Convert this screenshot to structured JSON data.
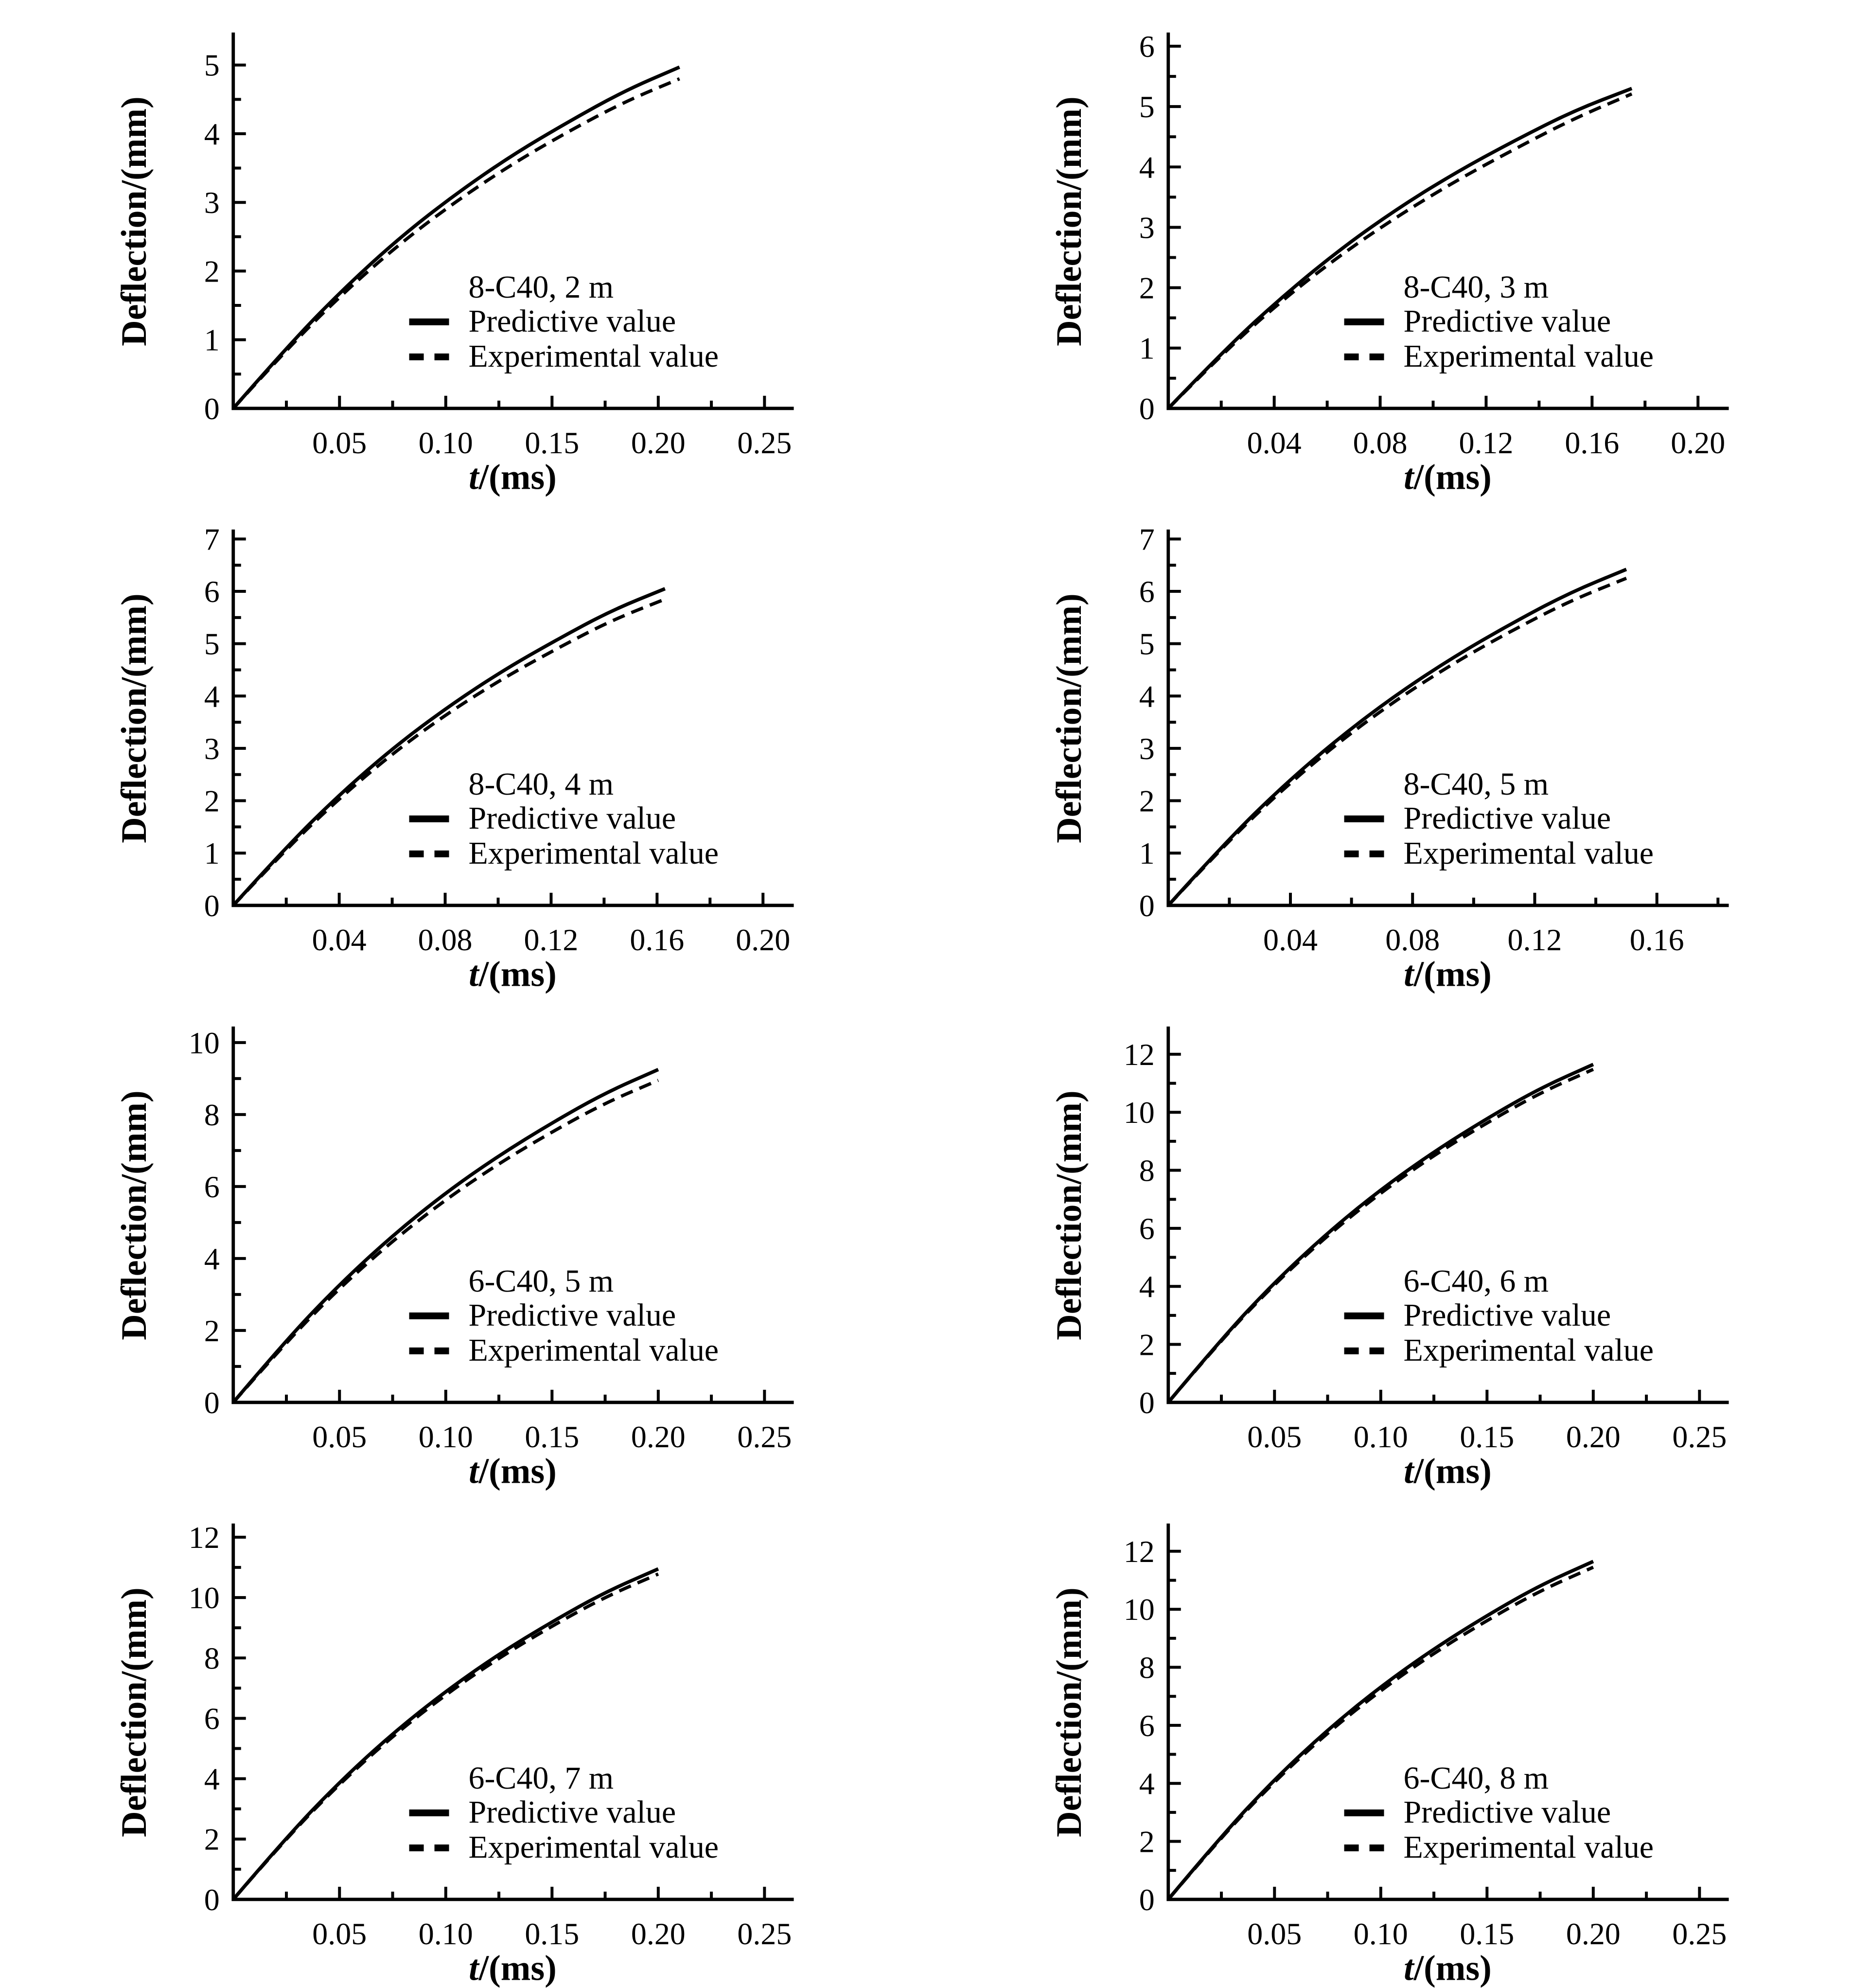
{
  "page": {
    "background": "#ffffff",
    "ink": "#000000"
  },
  "chart_data": [
    {
      "type": "line",
      "title": "8-C40, 2 m",
      "xlabel": "t/(ms)",
      "xlabel_var": "t",
      "xlabel_rest": "/(ms)",
      "ylabel": "Deflection/(mm)",
      "xlim": [
        0,
        0.263
      ],
      "ylim": [
        0,
        5.45
      ],
      "x_ticks": [
        0.05,
        0.1,
        0.15,
        0.2,
        0.25
      ],
      "x_tick_labels": [
        "0.05",
        "0.10",
        "0.15",
        "0.20",
        "0.25"
      ],
      "y_ticks": [
        0,
        1,
        2,
        3,
        4,
        5
      ],
      "y_tick_labels": [
        "0",
        "1",
        "2",
        "3",
        "4",
        "5"
      ],
      "grid": false,
      "legend_position": "inside-lower-right",
      "series": [
        {
          "name": "Predictive value",
          "style": "solid",
          "points": [
            [
              0,
              0
            ],
            [
              0.0263,
              0.93
            ],
            [
              0.0525,
              1.76
            ],
            [
              0.0788,
              2.5
            ],
            [
              0.105,
              3.13
            ],
            [
              0.1313,
              3.69
            ],
            [
              0.1575,
              4.17
            ],
            [
              0.1838,
              4.62
            ],
            [
              0.21,
              4.97
            ]
          ]
        },
        {
          "name": "Experimental value",
          "style": "dashed",
          "points": [
            [
              0,
              0
            ],
            [
              0.0263,
              0.9
            ],
            [
              0.0525,
              1.7
            ],
            [
              0.0788,
              2.41
            ],
            [
              0.105,
              3.02
            ],
            [
              0.1313,
              3.56
            ],
            [
              0.1575,
              4.03
            ],
            [
              0.1838,
              4.46
            ],
            [
              0.21,
              4.8
            ]
          ]
        }
      ]
    },
    {
      "type": "line",
      "title": "8-C40, 3 m",
      "xlabel": "t/(ms)",
      "xlabel_var": "t",
      "xlabel_rest": "/(ms)",
      "ylabel": "Deflection/(mm)",
      "xlim": [
        0,
        0.211
      ],
      "ylim": [
        0,
        6.2
      ],
      "x_ticks": [
        0.04,
        0.08,
        0.12,
        0.16,
        0.2
      ],
      "x_tick_labels": [
        "0.04",
        "0.08",
        "0.12",
        "0.16",
        "0.20"
      ],
      "y_ticks": [
        0,
        1,
        2,
        3,
        4,
        5,
        6
      ],
      "y_tick_labels": [
        "0",
        "1",
        "2",
        "3",
        "4",
        "5",
        "6"
      ],
      "grid": false,
      "legend_position": "inside-lower-right",
      "series": [
        {
          "name": "Predictive value",
          "style": "solid",
          "points": [
            [
              0,
              0
            ],
            [
              0.0219,
              1.0
            ],
            [
              0.0438,
              1.88
            ],
            [
              0.0656,
              2.66
            ],
            [
              0.0875,
              3.34
            ],
            [
              0.1094,
              3.93
            ],
            [
              0.1313,
              4.45
            ],
            [
              0.1531,
              4.93
            ],
            [
              0.175,
              5.3
            ]
          ]
        },
        {
          "name": "Experimental value",
          "style": "dashed",
          "points": [
            [
              0,
              0
            ],
            [
              0.0219,
              0.97
            ],
            [
              0.0438,
              1.82
            ],
            [
              0.0656,
              2.56
            ],
            [
              0.0875,
              3.21
            ],
            [
              0.1094,
              3.79
            ],
            [
              0.1313,
              4.31
            ],
            [
              0.1531,
              4.8
            ],
            [
              0.175,
              5.21
            ]
          ]
        }
      ]
    },
    {
      "type": "line",
      "title": "8-C40, 4 m",
      "xlabel": "t/(ms)",
      "xlabel_var": "t",
      "xlabel_rest": "/(ms)",
      "ylabel": "Deflection/(mm)",
      "xlim": [
        0,
        0.211
      ],
      "ylim": [
        0,
        7.15
      ],
      "x_ticks": [
        0.04,
        0.08,
        0.12,
        0.16,
        0.2
      ],
      "x_tick_labels": [
        "0.04",
        "0.08",
        "0.12",
        "0.16",
        "0.20"
      ],
      "y_ticks": [
        0,
        1,
        2,
        3,
        4,
        5,
        6,
        7
      ],
      "y_tick_labels": [
        "0",
        "1",
        "2",
        "3",
        "4",
        "5",
        "6",
        "7"
      ],
      "grid": false,
      "legend_position": "inside-lower-right",
      "series": [
        {
          "name": "Predictive value",
          "style": "solid",
          "points": [
            [
              0,
              0
            ],
            [
              0.0204,
              1.14
            ],
            [
              0.0408,
              2.15
            ],
            [
              0.0611,
              3.04
            ],
            [
              0.0815,
              3.81
            ],
            [
              0.1019,
              4.49
            ],
            [
              0.1223,
              5.08
            ],
            [
              0.1426,
              5.63
            ],
            [
              0.163,
              6.05
            ]
          ]
        },
        {
          "name": "Experimental value",
          "style": "dashed",
          "points": [
            [
              0,
              0
            ],
            [
              0.0204,
              1.1
            ],
            [
              0.0408,
              2.08
            ],
            [
              0.0611,
              2.94
            ],
            [
              0.0815,
              3.69
            ],
            [
              0.1019,
              4.34
            ],
            [
              0.1223,
              4.91
            ],
            [
              0.1426,
              5.44
            ],
            [
              0.163,
              5.85
            ]
          ]
        }
      ]
    },
    {
      "type": "line",
      "title": "8-C40, 5 m",
      "xlabel": "t/(ms)",
      "xlabel_var": "t",
      "xlabel_rest": "/(ms)",
      "ylabel": "Deflection/(mm)",
      "xlim": [
        0,
        0.183
      ],
      "ylim": [
        0,
        7.15
      ],
      "x_ticks": [
        0.04,
        0.08,
        0.12,
        0.16
      ],
      "x_tick_labels": [
        "0.04",
        "0.08",
        "0.12",
        "0.16"
      ],
      "y_ticks": [
        0,
        1,
        2,
        3,
        4,
        5,
        6,
        7
      ],
      "y_tick_labels": [
        "0",
        "1",
        "2",
        "3",
        "4",
        "5",
        "6",
        "7"
      ],
      "grid": false,
      "legend_position": "inside-lower-right",
      "series": [
        {
          "name": "Predictive value",
          "style": "solid",
          "points": [
            [
              0,
              0
            ],
            [
              0.0188,
              1.21
            ],
            [
              0.0375,
              2.28
            ],
            [
              0.0563,
              3.22
            ],
            [
              0.075,
              4.04
            ],
            [
              0.0938,
              4.76
            ],
            [
              0.1125,
              5.39
            ],
            [
              0.1313,
              5.97
            ],
            [
              0.15,
              6.42
            ]
          ]
        },
        {
          "name": "Experimental value",
          "style": "dashed",
          "points": [
            [
              0,
              0
            ],
            [
              0.0188,
              1.18
            ],
            [
              0.0375,
              2.22
            ],
            [
              0.0563,
              3.14
            ],
            [
              0.075,
              3.94
            ],
            [
              0.0938,
              4.64
            ],
            [
              0.1125,
              5.25
            ],
            [
              0.1313,
              5.81
            ],
            [
              0.15,
              6.25
            ]
          ]
        }
      ]
    },
    {
      "type": "line",
      "title": "6-C40, 5 m",
      "xlabel": "t/(ms)",
      "xlabel_var": "t",
      "xlabel_rest": "/(ms)",
      "ylabel": "Deflection/(mm)",
      "xlim": [
        0,
        0.263
      ],
      "ylim": [
        0,
        10.4
      ],
      "x_ticks": [
        0.05,
        0.1,
        0.15,
        0.2,
        0.25
      ],
      "x_tick_labels": [
        "0.05",
        "0.10",
        "0.15",
        "0.20",
        "0.25"
      ],
      "y_ticks": [
        0,
        2,
        4,
        6,
        8,
        10
      ],
      "y_tick_labels": [
        "0",
        "2",
        "4",
        "6",
        "8",
        "10"
      ],
      "grid": false,
      "legend_position": "inside-lower-right",
      "series": [
        {
          "name": "Predictive value",
          "style": "solid",
          "points": [
            [
              0,
              0
            ],
            [
              0.025,
              1.74
            ],
            [
              0.05,
              3.28
            ],
            [
              0.075,
              4.64
            ],
            [
              0.1,
              5.83
            ],
            [
              0.125,
              6.86
            ],
            [
              0.15,
              7.77
            ],
            [
              0.175,
              8.6
            ],
            [
              0.2,
              9.25
            ]
          ]
        },
        {
          "name": "Experimental value",
          "style": "dashed",
          "points": [
            [
              0,
              0
            ],
            [
              0.025,
              1.68
            ],
            [
              0.05,
              3.18
            ],
            [
              0.075,
              4.49
            ],
            [
              0.1,
              5.64
            ],
            [
              0.125,
              6.64
            ],
            [
              0.15,
              7.52
            ],
            [
              0.175,
              8.32
            ],
            [
              0.2,
              8.95
            ]
          ]
        }
      ]
    },
    {
      "type": "line",
      "title": "6-C40, 6 m",
      "xlabel": "t/(ms)",
      "xlabel_var": "t",
      "xlabel_rest": "/(ms)",
      "ylabel": "Deflection/(mm)",
      "xlim": [
        0,
        0.263
      ],
      "ylim": [
        0,
        12.9
      ],
      "x_ticks": [
        0.05,
        0.1,
        0.15,
        0.2,
        0.25
      ],
      "x_tick_labels": [
        "0.05",
        "0.10",
        "0.15",
        "0.20",
        "0.25"
      ],
      "y_ticks": [
        0,
        2,
        4,
        6,
        8,
        10,
        12
      ],
      "y_tick_labels": [
        "0",
        "2",
        "4",
        "6",
        "8",
        "10",
        "12"
      ],
      "grid": false,
      "legend_position": "inside-lower-right",
      "series": [
        {
          "name": "Predictive value",
          "style": "solid",
          "points": [
            [
              0,
              0
            ],
            [
              0.025,
              2.19
            ],
            [
              0.05,
              4.14
            ],
            [
              0.075,
              5.85
            ],
            [
              0.1,
              7.34
            ],
            [
              0.125,
              8.64
            ],
            [
              0.15,
              9.79
            ],
            [
              0.175,
              10.83
            ],
            [
              0.2,
              11.65
            ]
          ]
        },
        {
          "name": "Experimental value",
          "style": "dashed",
          "points": [
            [
              0,
              0
            ],
            [
              0.025,
              2.16
            ],
            [
              0.05,
              4.08
            ],
            [
              0.075,
              5.76
            ],
            [
              0.1,
              7.23
            ],
            [
              0.125,
              8.52
            ],
            [
              0.15,
              9.64
            ],
            [
              0.175,
              10.67
            ],
            [
              0.2,
              11.48
            ]
          ]
        }
      ]
    },
    {
      "type": "line",
      "title": "6-C40, 7 m",
      "xlabel": "t/(ms)",
      "xlabel_var": "t",
      "xlabel_rest": "/(ms)",
      "ylabel": "Deflection/(mm)",
      "xlim": [
        0,
        0.263
      ],
      "ylim": [
        0,
        12.4
      ],
      "x_ticks": [
        0.05,
        0.1,
        0.15,
        0.2,
        0.25
      ],
      "x_tick_labels": [
        "0.05",
        "0.10",
        "0.15",
        "0.20",
        "0.25"
      ],
      "y_ticks": [
        0,
        2,
        4,
        6,
        8,
        10,
        12
      ],
      "y_tick_labels": [
        "0",
        "2",
        "4",
        "6",
        "8",
        "10",
        "12"
      ],
      "grid": false,
      "legend_position": "inside-lower-right",
      "series": [
        {
          "name": "Predictive value",
          "style": "solid",
          "points": [
            [
              0,
              0
            ],
            [
              0.025,
              2.06
            ],
            [
              0.05,
              3.89
            ],
            [
              0.075,
              5.5
            ],
            [
              0.1,
              6.9
            ],
            [
              0.125,
              8.13
            ],
            [
              0.15,
              9.2
            ],
            [
              0.175,
              10.18
            ],
            [
              0.2,
              10.95
            ]
          ]
        },
        {
          "name": "Experimental value",
          "style": "dashed",
          "points": [
            [
              0,
              0
            ],
            [
              0.025,
              2.03
            ],
            [
              0.05,
              3.83
            ],
            [
              0.075,
              5.41
            ],
            [
              0.1,
              6.79
            ],
            [
              0.125,
              8.0
            ],
            [
              0.15,
              9.06
            ],
            [
              0.175,
              10.02
            ],
            [
              0.2,
              10.78
            ]
          ]
        }
      ]
    },
    {
      "type": "line",
      "title": "6-C40, 8 m",
      "xlabel": "t/(ms)",
      "xlabel_var": "t",
      "xlabel_rest": "/(ms)",
      "ylabel": "Deflection/(mm)",
      "xlim": [
        0,
        0.263
      ],
      "ylim": [
        0,
        12.9
      ],
      "x_ticks": [
        0.05,
        0.1,
        0.15,
        0.2,
        0.25
      ],
      "x_tick_labels": [
        "0.05",
        "0.10",
        "0.15",
        "0.20",
        "0.25"
      ],
      "y_ticks": [
        0,
        2,
        4,
        6,
        8,
        10,
        12
      ],
      "y_tick_labels": [
        "0",
        "2",
        "4",
        "6",
        "8",
        "10",
        "12"
      ],
      "grid": false,
      "legend_position": "inside-lower-right",
      "series": [
        {
          "name": "Predictive value",
          "style": "solid",
          "points": [
            [
              0,
              0
            ],
            [
              0.025,
              2.19
            ],
            [
              0.05,
              4.14
            ],
            [
              0.075,
              5.85
            ],
            [
              0.1,
              7.34
            ],
            [
              0.125,
              8.64
            ],
            [
              0.15,
              9.79
            ],
            [
              0.175,
              10.83
            ],
            [
              0.2,
              11.65
            ]
          ]
        },
        {
          "name": "Experimental value",
          "style": "dashed",
          "points": [
            [
              0,
              0
            ],
            [
              0.025,
              2.15
            ],
            [
              0.05,
              4.07
            ],
            [
              0.075,
              5.75
            ],
            [
              0.1,
              7.21
            ],
            [
              0.125,
              8.49
            ],
            [
              0.15,
              9.62
            ],
            [
              0.175,
              10.64
            ],
            [
              0.2,
              11.45
            ]
          ]
        }
      ]
    }
  ]
}
